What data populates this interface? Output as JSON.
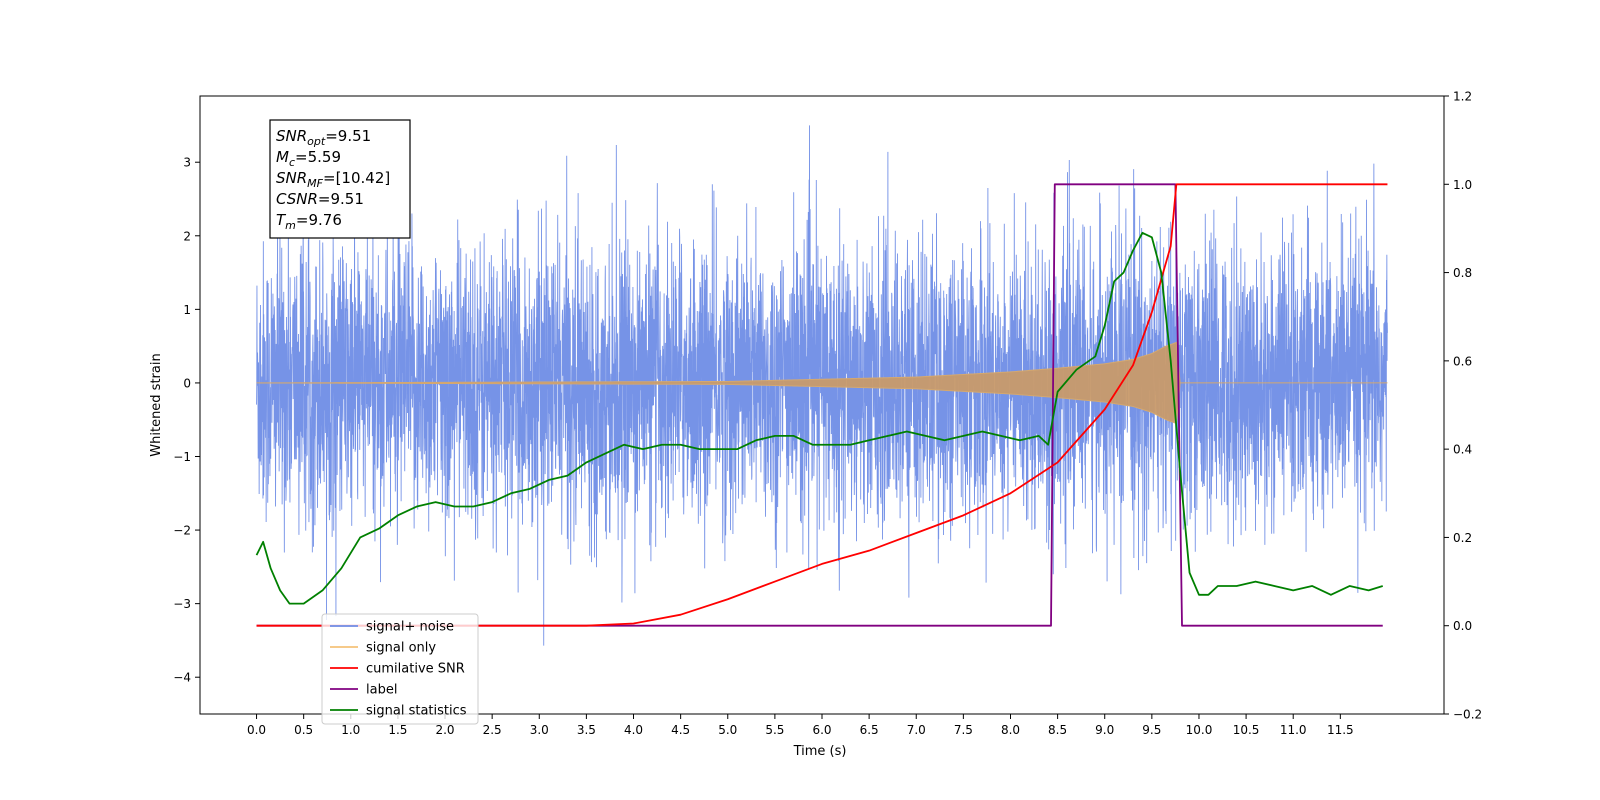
{
  "chart_data": {
    "type": "line",
    "xlabel": "Time (s)",
    "ylabel": "Whitened strain",
    "xlim": [
      -0.6,
      12.6
    ],
    "ylim": [
      -4.5,
      3.9
    ],
    "y2lim": [
      -0.2,
      1.2
    ],
    "x_ticks": [
      "0.0",
      "0.5",
      "1.0",
      "1.5",
      "2.0",
      "2.5",
      "3.0",
      "3.5",
      "4.0",
      "4.5",
      "5.0",
      "5.5",
      "6.0",
      "6.5",
      "7.0",
      "7.5",
      "8.0",
      "8.5",
      "9.0",
      "9.5",
      "10.0",
      "10.5",
      "11.0",
      "11.5"
    ],
    "y_ticks": [
      "3",
      "2",
      "1",
      "0",
      "−1",
      "−2",
      "−3",
      "−4"
    ],
    "y2_ticks": [
      "1.2",
      "1.0",
      "0.8",
      "0.6",
      "0.4",
      "0.2",
      "0.0",
      "−0.2"
    ],
    "annotation": {
      "lines": [
        {
          "base": "SNR",
          "sub": "opt",
          "value": "=9.51"
        },
        {
          "base": "M",
          "sub": "c",
          "value": "=5.59"
        },
        {
          "base": "SNR",
          "sub": "MF",
          "value": "=[10.42]"
        },
        {
          "base": "CSNR",
          "sub": "",
          "value": "=9.51"
        },
        {
          "base": "T",
          "sub": "m",
          "value": "=9.76"
        }
      ]
    },
    "legend": {
      "placement": "lower-left",
      "entries": [
        {
          "label": "signal+ noise",
          "color": "#6f8de6"
        },
        {
          "label": "signal only",
          "color": "#f5c27a"
        },
        {
          "label": "cumilative SNR",
          "color": "#ff0000"
        },
        {
          "label": "label",
          "color": "#800080"
        },
        {
          "label": "signal statistics",
          "color": "#008000"
        }
      ],
      "partially_hidden_text": [
        "signal only",
        "signal statistics"
      ]
    },
    "series": [
      {
        "name": "signal+ noise",
        "axis": "left",
        "color": "#6f8de6",
        "description_values": {
          "x_range": [
            0.0,
            12.0
          ],
          "typical_amplitude": 2.0,
          "max": 3.5,
          "min": -4.1
        }
      },
      {
        "name": "signal only",
        "axis": "left",
        "color": "#c89a6a",
        "envelope": {
          "x": [
            0.0,
            5.0,
            7.0,
            8.0,
            8.5,
            9.0,
            9.3,
            9.5,
            9.65,
            9.76,
            9.8,
            12.0
          ],
          "amp": [
            0.0,
            0.02,
            0.08,
            0.15,
            0.2,
            0.26,
            0.32,
            0.4,
            0.5,
            0.55,
            0.0,
            0.0
          ]
        }
      },
      {
        "name": "cumilative SNR",
        "axis": "right",
        "color": "#ff0000",
        "x": [
          0.0,
          3.0,
          3.5,
          4.0,
          4.5,
          5.0,
          5.5,
          6.0,
          6.5,
          7.0,
          7.5,
          8.0,
          8.5,
          9.0,
          9.3,
          9.5,
          9.7,
          9.76,
          12.0
        ],
        "values": [
          0.0,
          0.0,
          0.0,
          0.005,
          0.025,
          0.06,
          0.1,
          0.14,
          0.17,
          0.21,
          0.25,
          0.3,
          0.37,
          0.49,
          0.59,
          0.71,
          0.86,
          1.0,
          1.0
        ]
      },
      {
        "name": "label",
        "axis": "right",
        "color": "#800080",
        "x": [
          0.0,
          8.43,
          8.47,
          9.75,
          9.82,
          11.95
        ],
        "values": [
          0.0,
          0.0,
          1.0,
          1.0,
          0.0,
          0.0
        ]
      },
      {
        "name": "signal statistics",
        "axis": "right",
        "color": "#008000",
        "x": [
          0.0,
          0.07,
          0.15,
          0.25,
          0.35,
          0.5,
          0.7,
          0.9,
          1.1,
          1.3,
          1.5,
          1.7,
          1.9,
          2.1,
          2.3,
          2.5,
          2.7,
          2.9,
          3.1,
          3.3,
          3.5,
          3.7,
          3.9,
          4.1,
          4.3,
          4.5,
          4.7,
          4.9,
          5.1,
          5.3,
          5.5,
          5.7,
          5.9,
          6.1,
          6.3,
          6.5,
          6.7,
          6.9,
          7.1,
          7.3,
          7.5,
          7.7,
          7.9,
          8.1,
          8.3,
          8.4,
          8.5,
          8.7,
          8.9,
          9.0,
          9.1,
          9.2,
          9.3,
          9.4,
          9.5,
          9.6,
          9.7,
          9.8,
          9.9,
          10.0,
          10.1,
          10.2,
          10.4,
          10.6,
          10.8,
          11.0,
          11.2,
          11.4,
          11.6,
          11.8,
          11.95
        ],
        "values": [
          0.16,
          0.19,
          0.13,
          0.08,
          0.05,
          0.05,
          0.08,
          0.13,
          0.2,
          0.22,
          0.25,
          0.27,
          0.28,
          0.27,
          0.27,
          0.28,
          0.3,
          0.31,
          0.33,
          0.34,
          0.37,
          0.39,
          0.41,
          0.4,
          0.41,
          0.41,
          0.4,
          0.4,
          0.4,
          0.42,
          0.43,
          0.43,
          0.41,
          0.41,
          0.41,
          0.42,
          0.43,
          0.44,
          0.43,
          0.42,
          0.43,
          0.44,
          0.43,
          0.42,
          0.43,
          0.41,
          0.53,
          0.58,
          0.61,
          0.68,
          0.78,
          0.8,
          0.85,
          0.89,
          0.88,
          0.8,
          0.6,
          0.35,
          0.12,
          0.07,
          0.07,
          0.09,
          0.09,
          0.1,
          0.09,
          0.08,
          0.09,
          0.07,
          0.09,
          0.08,
          0.09
        ]
      }
    ]
  }
}
